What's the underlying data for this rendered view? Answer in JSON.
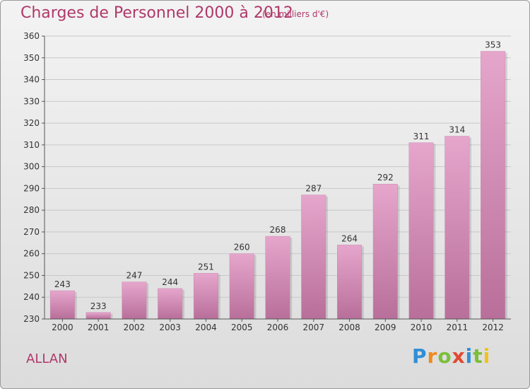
{
  "header": {
    "title": "Charges de Personnel 2000 à 2012",
    "subtitle": "(en milliers d'€)"
  },
  "footer": {
    "commune": "ALLAN",
    "logo_text": "Proxiti"
  },
  "colors": {
    "title": "#b0386a",
    "bar_top": "#e6a6cc",
    "bar_bottom": "#b86f9a",
    "grid": "#c8c8c8",
    "axis": "#555555"
  },
  "chart_data": {
    "type": "bar",
    "categories": [
      "2000",
      "2001",
      "2002",
      "2003",
      "2004",
      "2005",
      "2006",
      "2007",
      "2008",
      "2009",
      "2010",
      "2011",
      "2012"
    ],
    "values": [
      243,
      233,
      247,
      244,
      251,
      260,
      268,
      287,
      264,
      292,
      311,
      314,
      353
    ],
    "title": "Charges de Personnel 2000 à 2012",
    "subtitle": "(en milliers d'€)",
    "xlabel": "",
    "ylabel": "",
    "ylim": [
      230,
      360
    ],
    "yticks": [
      230,
      240,
      250,
      260,
      270,
      280,
      290,
      300,
      310,
      320,
      330,
      340,
      350,
      360
    ],
    "grid": true,
    "legend": "none",
    "data_labels": true
  }
}
